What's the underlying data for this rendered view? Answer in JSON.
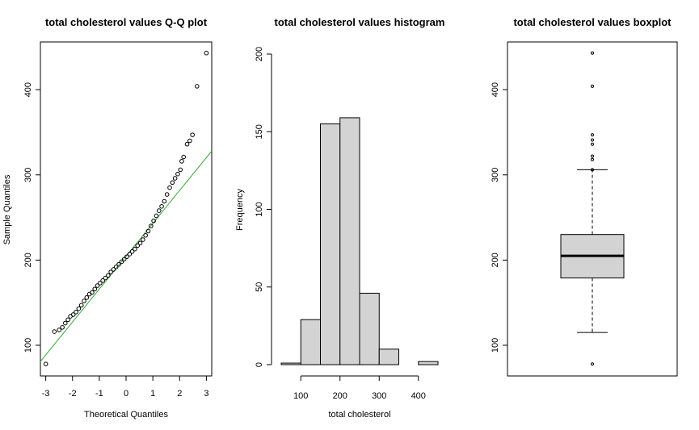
{
  "chart_data": [
    {
      "type": "scatter",
      "title": "total cholesterol values Q-Q plot",
      "xlabel": "Theoretical Quantiles",
      "ylabel": "Sample Quantiles",
      "xlim": [
        -3.2,
        3.2
      ],
      "ylim": [
        64,
        456
      ],
      "xticks": [
        -3,
        -2,
        -1,
        0,
        1,
        2,
        3
      ],
      "yticks": [
        100,
        200,
        300,
        400
      ],
      "reference_line": {
        "color": "#33aa33",
        "x": [
          -3.2,
          3.2
        ],
        "y": [
          81,
          328
        ]
      },
      "points": [
        [
          -3.0,
          78
        ],
        [
          -2.68,
          116
        ],
        [
          -2.5,
          118
        ],
        [
          -2.38,
          121
        ],
        [
          -2.27,
          126
        ],
        [
          -2.17,
          130
        ],
        [
          -2.08,
          134
        ],
        [
          -1.97,
          136
        ],
        [
          -1.87,
          139
        ],
        [
          -1.77,
          143
        ],
        [
          -1.67,
          147
        ],
        [
          -1.57,
          152
        ],
        [
          -1.47,
          156
        ],
        [
          -1.37,
          160
        ],
        [
          -1.27,
          162
        ],
        [
          -1.17,
          166
        ],
        [
          -1.07,
          170
        ],
        [
          -0.97,
          173
        ],
        [
          -0.87,
          176
        ],
        [
          -0.77,
          179
        ],
        [
          -0.67,
          182
        ],
        [
          -0.57,
          186
        ],
        [
          -0.47,
          189
        ],
        [
          -0.37,
          192
        ],
        [
          -0.27,
          195
        ],
        [
          -0.17,
          198
        ],
        [
          -0.07,
          201
        ],
        [
          0.03,
          204
        ],
        [
          0.13,
          207
        ],
        [
          0.23,
          210
        ],
        [
          0.33,
          213
        ],
        [
          0.43,
          217
        ],
        [
          0.53,
          220
        ],
        [
          0.63,
          224
        ],
        [
          0.73,
          229
        ],
        [
          0.83,
          234
        ],
        [
          0.93,
          240
        ],
        [
          1.03,
          246
        ],
        [
          1.13,
          252
        ],
        [
          1.23,
          258
        ],
        [
          1.33,
          263
        ],
        [
          1.43,
          269
        ],
        [
          1.53,
          277
        ],
        [
          1.63,
          285
        ],
        [
          1.73,
          291
        ],
        [
          1.83,
          296
        ],
        [
          1.93,
          301
        ],
        [
          2.03,
          306
        ],
        [
          2.08,
          316
        ],
        [
          2.15,
          321
        ],
        [
          2.28,
          336
        ],
        [
          2.38,
          340
        ],
        [
          2.48,
          347
        ],
        [
          2.65,
          404
        ],
        [
          3.0,
          443
        ]
      ]
    },
    {
      "type": "bar",
      "title": "total cholesterol values histogram",
      "xlabel": "total cholesterol",
      "ylabel": "Frequency",
      "xlim": [
        50,
        450
      ],
      "ylim": [
        0,
        200
      ],
      "xticks": [
        100,
        200,
        300,
        400
      ],
      "yticks": [
        0,
        50,
        100,
        150,
        200
      ],
      "bar_color": "#d3d3d3",
      "bins": [
        {
          "from": 50,
          "to": 100,
          "count": 1
        },
        {
          "from": 100,
          "to": 150,
          "count": 29
        },
        {
          "from": 150,
          "to": 200,
          "count": 155
        },
        {
          "from": 200,
          "to": 250,
          "count": 159
        },
        {
          "from": 250,
          "to": 300,
          "count": 46
        },
        {
          "from": 300,
          "to": 350,
          "count": 10
        },
        {
          "from": 350,
          "to": 400,
          "count": 0
        },
        {
          "from": 400,
          "to": 450,
          "count": 2
        }
      ]
    },
    {
      "type": "box",
      "title": "total cholesterol values boxplot",
      "ylim": [
        64,
        456
      ],
      "yticks": [
        100,
        200,
        300,
        400
      ],
      "box_color": "#d3d3d3",
      "whisker_low": 115,
      "q1": 179,
      "median": 205,
      "q3": 230,
      "whisker_high": 306,
      "outliers": [
        78,
        306,
        318,
        322,
        336,
        341,
        347,
        404,
        443
      ]
    }
  ]
}
